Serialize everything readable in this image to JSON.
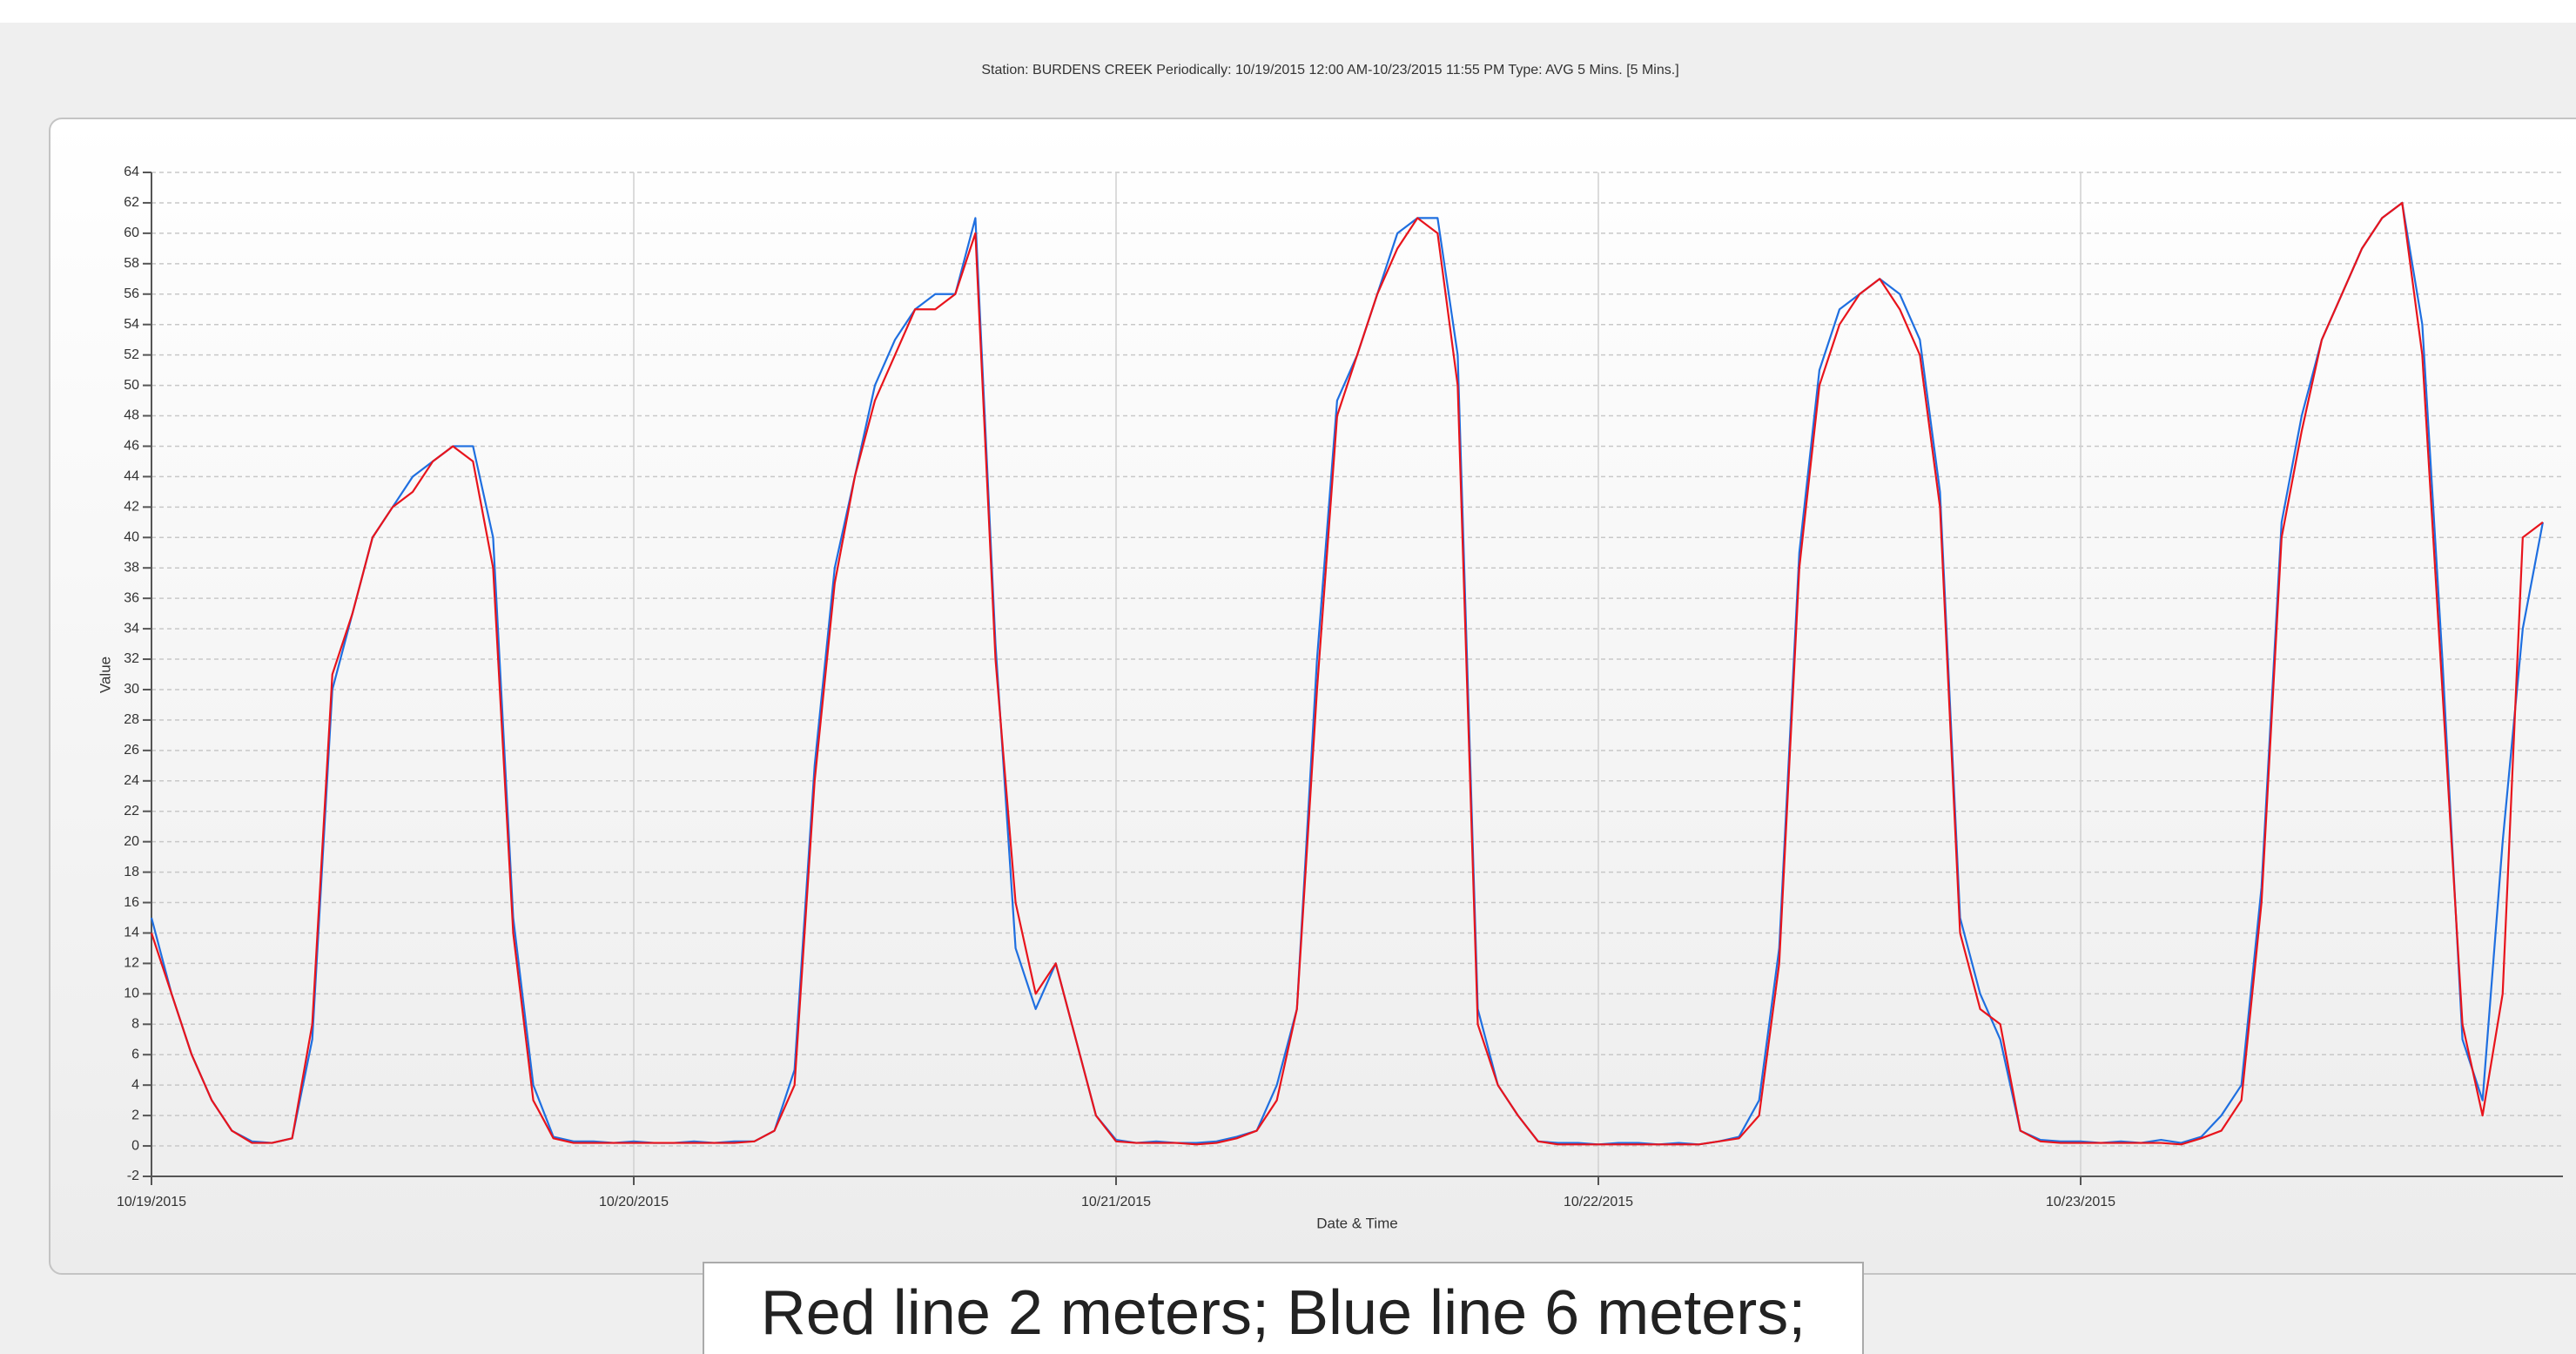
{
  "chart_data": {
    "type": "line",
    "title": "Station: BURDENS CREEK  Periodically: 10/19/2015 12:00 AM-10/23/2015 11:55 PM  Type: AVG 5 Mins. [5 Mins.]",
    "x_label": "Date & Time",
    "y_label": "Value",
    "annotation": "Red line 2 meters; Blue line 6 meters;",
    "x": [
      0,
      1,
      2,
      3,
      4,
      5,
      6,
      7,
      8,
      9,
      10,
      11,
      12,
      13,
      14,
      15,
      16,
      17,
      18,
      19,
      20,
      21,
      22,
      23,
      24,
      25,
      26,
      27,
      28,
      29,
      30,
      31,
      32,
      33,
      34,
      35,
      36,
      37,
      38,
      39,
      40,
      41,
      42,
      43,
      44,
      45,
      46,
      47,
      48,
      49,
      50,
      51,
      52,
      53,
      54,
      55,
      56,
      57,
      58,
      59,
      60,
      61,
      62,
      63,
      64,
      65,
      66,
      67,
      68,
      69,
      70,
      71,
      72,
      73,
      74,
      75,
      76,
      77,
      78,
      79,
      80,
      81,
      82,
      83,
      84,
      85,
      86,
      87,
      88,
      89,
      90,
      91,
      92,
      93,
      94,
      95,
      96,
      97,
      98,
      99,
      100,
      101,
      102,
      103,
      104,
      105,
      106,
      107,
      108,
      109,
      110,
      111,
      112,
      113,
      114,
      115,
      116,
      117,
      118,
      119
    ],
    "series": [
      {
        "color": "#1f6fe0",
        "values": [
          15,
          10,
          6,
          3,
          1,
          0.3,
          0.2,
          0.5,
          7,
          30,
          35,
          40,
          42,
          44,
          45,
          46,
          46,
          40,
          15,
          4,
          0.6,
          0.3,
          0.3,
          0.2,
          0.3,
          0.2,
          0.2,
          0.3,
          0.2,
          0.3,
          0.3,
          1,
          5,
          25,
          38,
          44,
          50,
          53,
          55,
          56,
          56,
          61,
          33,
          13,
          9,
          12,
          7,
          2,
          0.4,
          0.2,
          0.3,
          0.2,
          0.2,
          0.3,
          0.6,
          1,
          4,
          9,
          32,
          49,
          52,
          56,
          60,
          61,
          61,
          52,
          9,
          4,
          2,
          0.3,
          0.2,
          0.2,
          0.1,
          0.2,
          0.2,
          0.1,
          0.2,
          0.1,
          0.3,
          0.6,
          3,
          13,
          39,
          51,
          55,
          56,
          57,
          56,
          53,
          43,
          15,
          10,
          7,
          1,
          0.4,
          0.3,
          0.3,
          0.2,
          0.3,
          0.2,
          0.4,
          0.2,
          0.6,
          2,
          4,
          17,
          41,
          48,
          53,
          56,
          59,
          61,
          62,
          54,
          32,
          7,
          3,
          20,
          34,
          41
        ]
      },
      {
        "color": "#e8141c",
        "values": [
          14,
          10,
          6,
          3,
          1,
          0.2,
          0.2,
          0.5,
          8,
          31,
          35,
          40,
          42,
          43,
          45,
          46,
          45,
          38,
          14,
          3,
          0.5,
          0.2,
          0.2,
          0.2,
          0.2,
          0.2,
          0.2,
          0.2,
          0.2,
          0.2,
          0.3,
          1,
          4,
          24,
          37,
          44,
          49,
          52,
          55,
          55,
          56,
          60,
          32,
          16,
          10,
          12,
          7,
          2,
          0.3,
          0.2,
          0.2,
          0.2,
          0.1,
          0.2,
          0.5,
          1,
          3,
          9,
          30,
          48,
          52,
          56,
          59,
          61,
          60,
          50,
          8,
          4,
          2,
          0.3,
          0.1,
          0.1,
          0.1,
          0.1,
          0.1,
          0.1,
          0.1,
          0.1,
          0.3,
          0.5,
          2,
          12,
          38,
          50,
          54,
          56,
          57,
          55,
          52,
          42,
          14,
          9,
          8,
          1,
          0.3,
          0.2,
          0.2,
          0.2,
          0.2,
          0.2,
          0.2,
          0.1,
          0.5,
          1,
          3,
          16,
          40,
          47,
          53,
          56,
          59,
          61,
          62,
          52,
          30,
          8,
          2,
          10,
          40,
          41
        ]
      }
    ],
    "xlim": [
      0,
      120
    ],
    "xticks": [
      {
        "value": 0,
        "label": "10/19/2015"
      },
      {
        "value": 24,
        "label": "10/20/2015"
      },
      {
        "value": 48,
        "label": "10/21/2015"
      },
      {
        "value": 72,
        "label": "10/22/2015"
      },
      {
        "value": 96,
        "label": "10/23/2015"
      }
    ],
    "ylim": [
      -2,
      64
    ],
    "yticks": [
      -2,
      0,
      2,
      4,
      6,
      8,
      10,
      12,
      14,
      16,
      18,
      20,
      22,
      24,
      26,
      28,
      30,
      32,
      34,
      36,
      38,
      40,
      42,
      44,
      46,
      48,
      50,
      52,
      54,
      56,
      58,
      60,
      62,
      64
    ],
    "grid": true
  }
}
